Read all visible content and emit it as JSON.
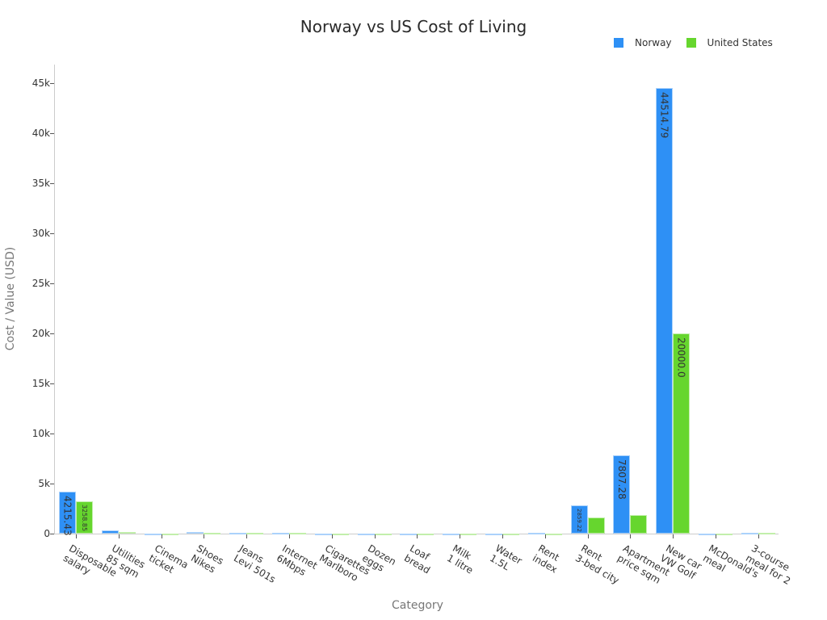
{
  "header": {
    "title": "Norway vs US Cost of Living"
  },
  "legend": [
    {
      "label": "Norway",
      "color": "#2e90f5"
    },
    {
      "label": "United States",
      "color": "#66d62e"
    }
  ],
  "axes": {
    "xlabel": "Category",
    "ylabel": "Cost / Value (USD)",
    "yticks": [
      "0",
      "5k",
      "10k",
      "15k",
      "20k",
      "25k",
      "30k",
      "35k",
      "40k",
      "45k"
    ]
  },
  "bar_labels": {
    "n0": "4215.43",
    "u0": "3258.85",
    "n12": "2859.22",
    "n13": "7807.28",
    "n14": "44514.79",
    "u14": "20000.0"
  },
  "xticks": [
    "Disposable\nsalary",
    "Utilities\n85 sqm",
    "Cinema\nticket",
    "Shoes\nNikes",
    "Jeans\nLevi 501s",
    "Internet\n6Mbps",
    "Cigarettes\nMarlboro",
    "Dozen\neggs",
    "Loaf\nbread",
    "Milk\n1 litre",
    "Water\n1.5L",
    "Rent\nindex",
    "Rent\n3-bed city",
    "Apartment\nprice sqm",
    "New car\nVW Golf",
    "McDonald's\nmeal",
    "3-course\nmeal for 2"
  ],
  "chart_data": {
    "type": "bar",
    "title": "Norway vs US Cost of Living",
    "xlabel": "Category",
    "ylabel": "Cost / Value (USD)",
    "ylim": [
      0,
      47000
    ],
    "grid": false,
    "legend_position": "top-right",
    "categories": [
      "Disposable salary",
      "Utilities 85 sqm",
      "Cinema ticket",
      "Shoes Nikes",
      "Jeans Levi 501s",
      "Internet 6Mbps",
      "Cigarettes Marlboro",
      "Dozen eggs",
      "Loaf bread",
      "Milk 1 litre",
      "Water 1.5L",
      "Rent index",
      "Rent 3-bed city",
      "Apartment price sqm",
      "New car VW Golf",
      "McDonald's meal",
      "3-course meal for 2"
    ],
    "series": [
      {
        "name": "Norway",
        "color": "#2e90f5",
        "values": [
          4215.43,
          300,
          15,
          150,
          120,
          70,
          15,
          5,
          4,
          2,
          3,
          60,
          2859.22,
          7807.28,
          44514.79,
          14,
          110
        ]
      },
      {
        "name": "United States",
        "color": "#66d62e",
        "values": [
          3258.85,
          160,
          12,
          100,
          50,
          45,
          8,
          3,
          3,
          1,
          2,
          40,
          1650,
          1850,
          20000.0,
          8,
          60
        ]
      }
    ]
  }
}
